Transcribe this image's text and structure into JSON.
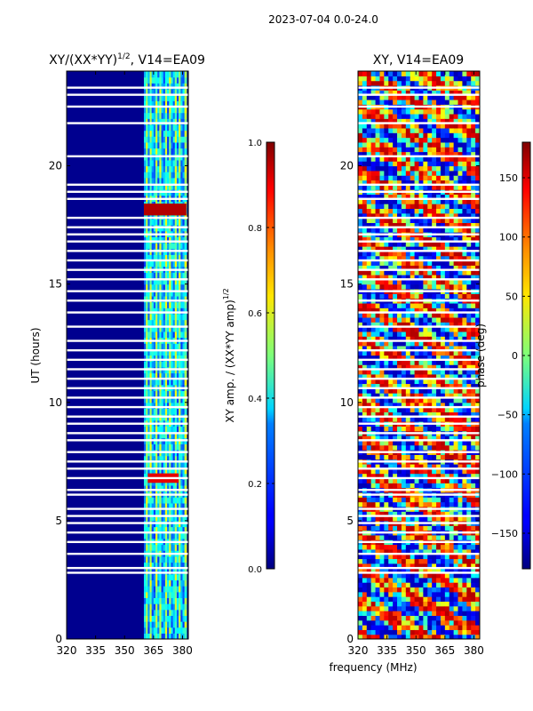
{
  "figure_title": "2023-07-04 0.0-24.0",
  "colors": {
    "accent": "#000080",
    "background": "#ffffff"
  },
  "chart_data": [
    {
      "type": "heatmap",
      "title_main": "XY/(XX*YY)",
      "title_sup": "1/2",
      "title_rest": ", V14=EA09",
      "xlabel": "",
      "ylabel": "UT (hours)",
      "xlim": [
        320,
        383
      ],
      "ylim": [
        0,
        24
      ],
      "xticks": [
        320,
        335,
        350,
        365,
        380
      ],
      "yticks": [
        0,
        5,
        10,
        15,
        20
      ],
      "bright_band_MHz": [
        360,
        382
      ],
      "hot_spots": [
        {
          "x0": 360,
          "x1": 382,
          "y0": 17.9,
          "y1": 18.4,
          "value": 0.95
        },
        {
          "x0": 362,
          "x1": 378,
          "y0": 6.6,
          "y1": 7.0,
          "value": 0.9
        }
      ],
      "data_gaps_UT": [
        2.8,
        3.0,
        3.6,
        4.1,
        4.5,
        4.9,
        5.2,
        5.5,
        6.1,
        6.3,
        6.8,
        7.2,
        7.5,
        7.9,
        8.4,
        8.7,
        9.1,
        9.4,
        9.8,
        10.2,
        10.6,
        11.0,
        11.4,
        11.8,
        12.2,
        12.6,
        13.2,
        13.8,
        14.3,
        14.7,
        15.2,
        15.6,
        16.0,
        16.4,
        16.8,
        17.1,
        17.4,
        17.8,
        18.6,
        18.9,
        19.2,
        20.4,
        21.8,
        22.5,
        23.0,
        23.3
      ]
    },
    {
      "type": "heatmap",
      "title": "XY, V14=EA09",
      "xlabel": "frequency (MHz)",
      "ylabel": "",
      "xlim": [
        320,
        383
      ],
      "ylim": [
        0,
        24
      ],
      "xticks": [
        320,
        335,
        350,
        365,
        380
      ],
      "yticks": [
        0,
        5,
        10,
        15,
        20
      ],
      "data_gaps_UT": [
        2.8,
        3.0,
        3.6,
        4.1,
        4.5,
        4.9,
        5.2,
        5.5,
        6.1,
        6.3,
        6.8,
        7.2,
        7.5,
        7.9,
        8.4,
        8.7,
        9.1,
        9.4,
        9.8,
        10.2,
        10.6,
        11.0,
        11.4,
        11.8,
        12.2,
        12.6,
        13.2,
        13.8,
        14.3,
        14.7,
        15.2,
        15.6,
        16.0,
        16.4,
        16.8,
        17.1,
        17.4,
        17.8,
        18.6,
        18.9,
        19.2,
        20.4,
        21.8,
        22.5,
        23.0,
        23.3
      ]
    }
  ],
  "colorbars": [
    {
      "label": "XY amp. / (XX*YY amp)",
      "label_sup": "1/2",
      "range": [
        0.0,
        1.0
      ],
      "ticks": [
        0.0,
        0.2,
        0.4,
        0.6,
        0.8,
        1.0
      ],
      "tick_labels": [
        "0.0",
        "0.2",
        "0.4",
        "0.6",
        "0.8",
        "1.0"
      ]
    },
    {
      "label": "phase (deg)",
      "range": [
        -180,
        180
      ],
      "ticks": [
        -150,
        -100,
        -50,
        0,
        50,
        100,
        150
      ],
      "tick_labels": [
        "−150",
        "−100",
        "−50",
        "0",
        "50",
        "100",
        "150"
      ]
    }
  ]
}
